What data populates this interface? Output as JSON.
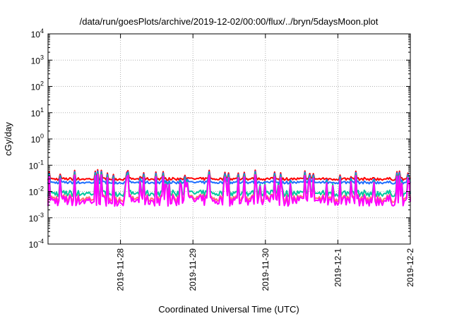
{
  "chart_data": {
    "type": "line",
    "title": "/data/run/goesPlots/archive/2019-12-02/00:00/flux/../bryn/5daysMoon.plot",
    "xlabel": "Coordinated Universal Time (UTC)",
    "ylabel": "cGy/day",
    "yscale": "log",
    "ylim": [
      0.0001,
      10000
    ],
    "xlim": [
      "2019-11-27 00:00",
      "2019-12-02 00:00"
    ],
    "y_ticks": [
      {
        "base": "10",
        "exp": "-4",
        "value": 0.0001
      },
      {
        "base": "10",
        "exp": "-3",
        "value": 0.001
      },
      {
        "base": "10",
        "exp": "-2",
        "value": 0.01
      },
      {
        "base": "10",
        "exp": "-1",
        "value": 0.1
      },
      {
        "base": "10",
        "exp": "0",
        "value": 1
      },
      {
        "base": "10",
        "exp": "1",
        "value": 10
      },
      {
        "base": "10",
        "exp": "2",
        "value": 100
      },
      {
        "base": "10",
        "exp": "3",
        "value": 1000
      },
      {
        "base": "10",
        "exp": "4",
        "value": 10000
      }
    ],
    "x_ticks": [
      {
        "label": "2019-11-28",
        "value": "2019-11-28 00:00"
      },
      {
        "label": "2019-11-29",
        "value": "2019-11-29 00:00"
      },
      {
        "label": "2019-11-30",
        "value": "2019-11-30 00:00"
      },
      {
        "label": "2019-12-1",
        "value": "2019-12-01 00:00"
      },
      {
        "label": "2019-12-2",
        "value": "2019-12-02 00:00"
      }
    ],
    "grid": true,
    "legend": "none",
    "series": [
      {
        "color": "#ff0000",
        "baseline": 0.03,
        "spike": 0.045,
        "noise": 0.15
      },
      {
        "color": "#1e6fff",
        "baseline": 0.022,
        "spike": 0.04,
        "noise": 0.15
      },
      {
        "color": "#00c8a0",
        "baseline": 0.0085,
        "spike": 0.035,
        "noise": 0.35
      },
      {
        "color": "#ff7070",
        "baseline": 0.0055,
        "spike": 0.03,
        "noise": 0.45
      },
      {
        "color": "#ff00ff",
        "baseline": 0.0045,
        "spike": 0.03,
        "noise": 0.6
      }
    ]
  }
}
